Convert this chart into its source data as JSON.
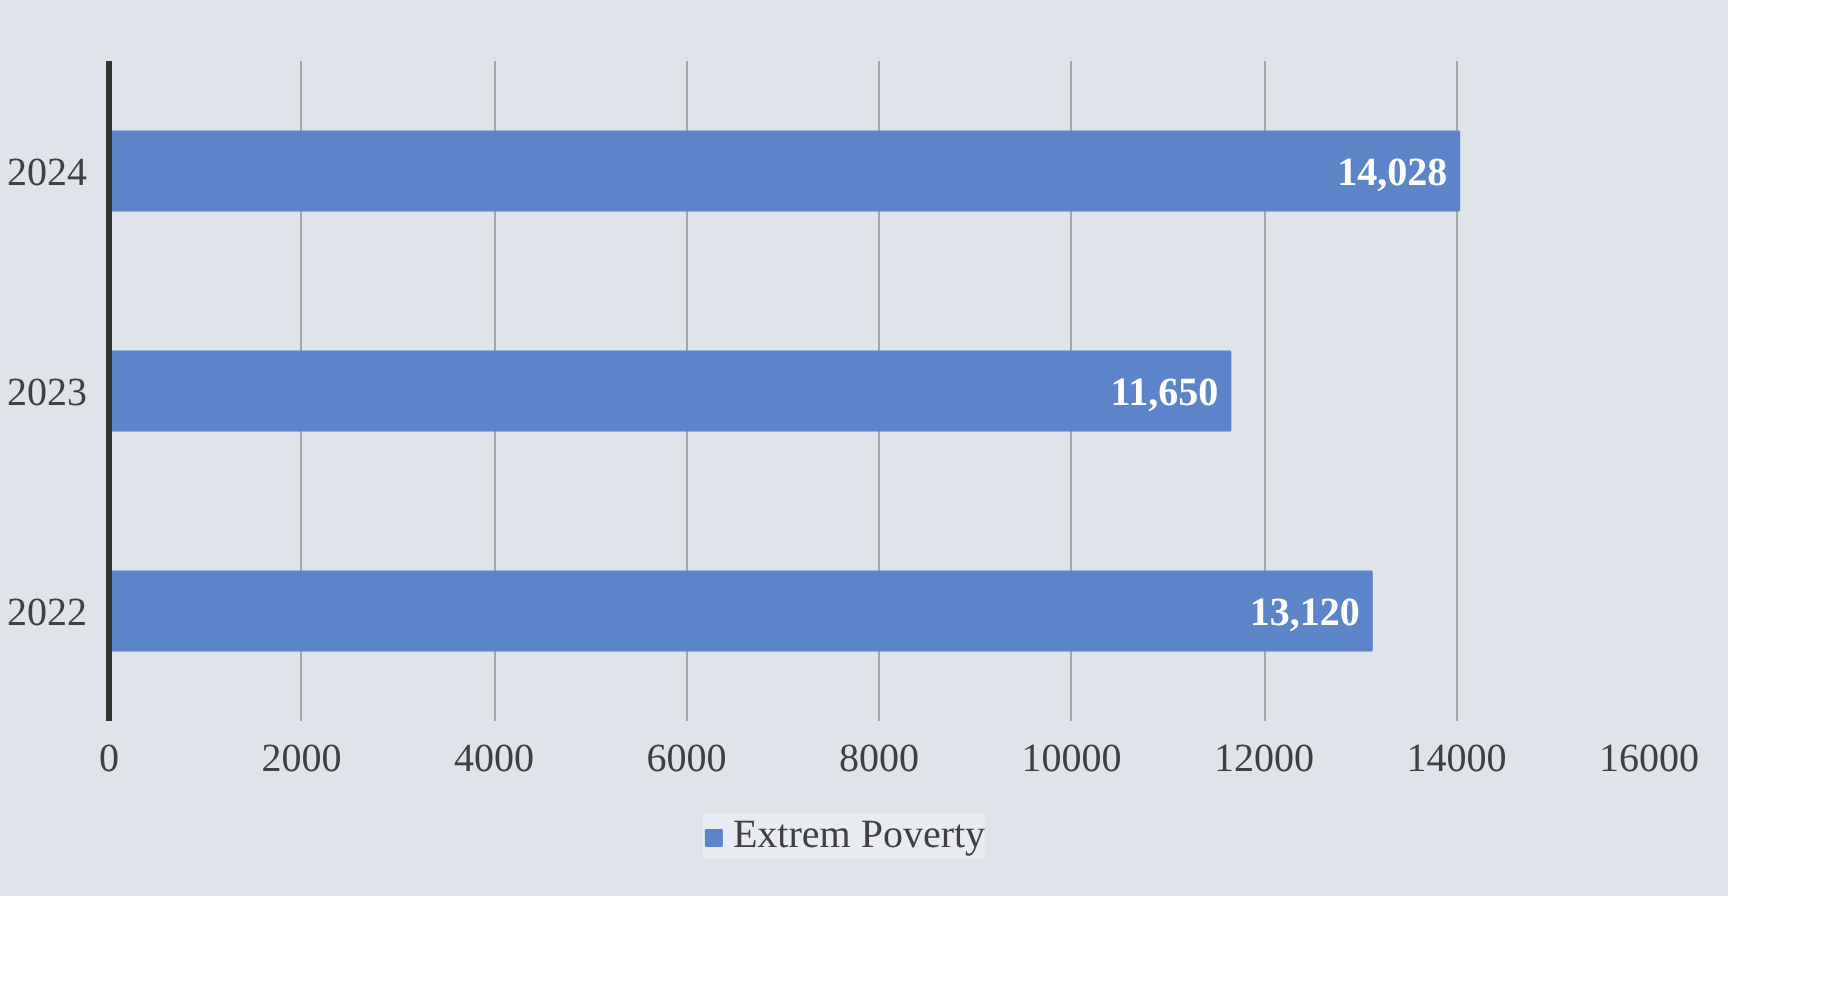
{
  "chart_data": {
    "type": "bar",
    "orientation": "horizontal",
    "categories": [
      "2024",
      "2023",
      "2022"
    ],
    "series": [
      {
        "name": "Extrem Poverty",
        "color": "#5b84c9",
        "values": [
          14028,
          11650,
          13120
        ],
        "value_labels": [
          "14,028",
          "11,650",
          "13,120"
        ]
      }
    ],
    "xlim": [
      0,
      16000
    ],
    "xticks": [
      0,
      2000,
      4000,
      6000,
      8000,
      10000,
      12000,
      14000,
      16000
    ],
    "grid": "x",
    "legend": "bottom"
  }
}
